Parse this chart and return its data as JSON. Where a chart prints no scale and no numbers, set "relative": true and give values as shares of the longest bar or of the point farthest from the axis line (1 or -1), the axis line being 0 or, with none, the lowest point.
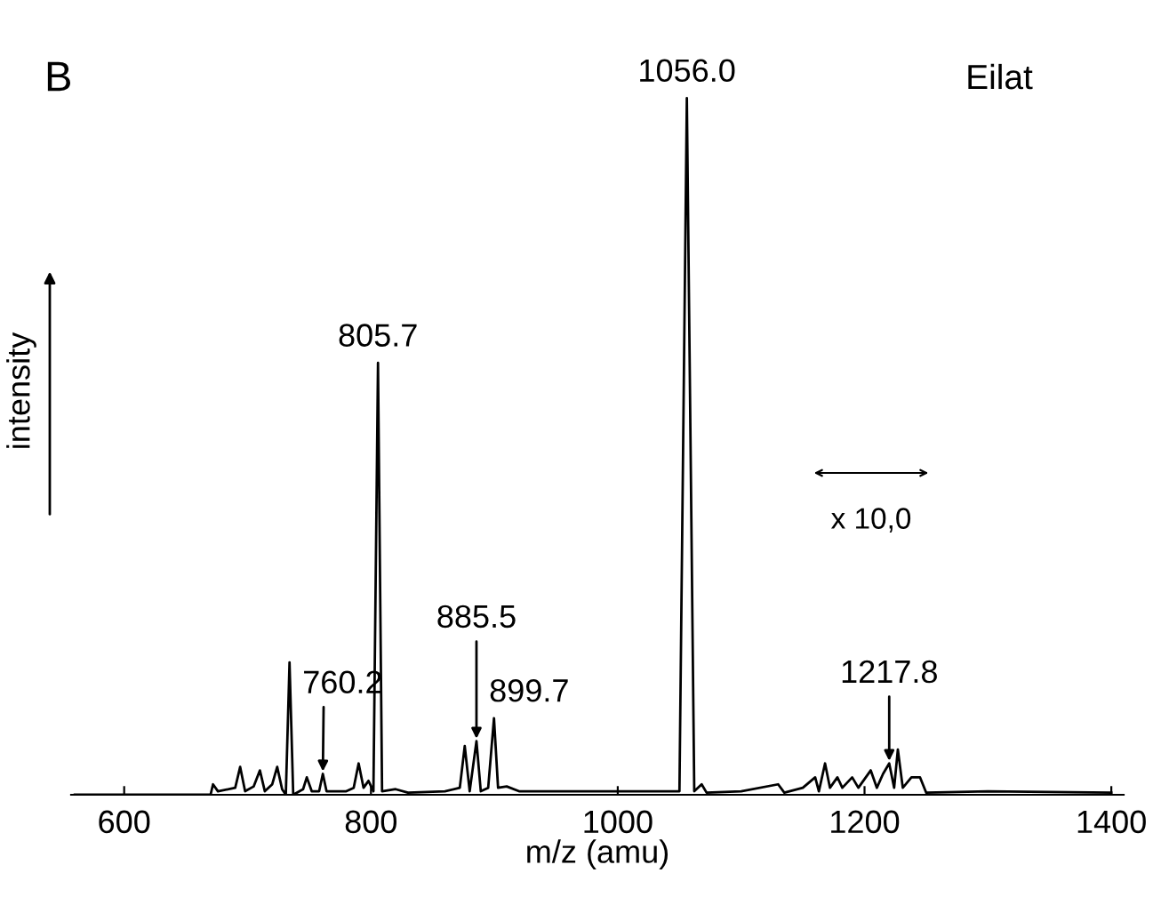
{
  "chart_data": {
    "type": "line",
    "xlabel": "m/z (amu)",
    "ylabel": "intensity",
    "relative": true,
    "xlim": [
      557,
      1410
    ],
    "xticks": [
      600,
      800,
      1000,
      1200,
      1400
    ],
    "grid": false,
    "legend": false,
    "marker": "none",
    "line_style": "solid",
    "series": [
      {
        "color": "#000000",
        "x": [
          560,
          670,
          672,
          676,
          690,
          694,
          698,
          705,
          710,
          714,
          720,
          724,
          728,
          731,
          734,
          737,
          745,
          748,
          752,
          758,
          761,
          764,
          780,
          786,
          790,
          794,
          798,
          802,
          805.7,
          809,
          820,
          830,
          860,
          872,
          876,
          880,
          885.5,
          889,
          895,
          899.7,
          903,
          910,
          920,
          1000,
          1050,
          1056,
          1062,
          1068,
          1072,
          1100,
          1130,
          1135,
          1150,
          1160,
          1163,
          1168,
          1172,
          1178,
          1182,
          1190,
          1195,
          1205,
          1210,
          1215,
          1220,
          1224,
          1227,
          1231,
          1238,
          1245,
          1250,
          1300,
          1400
        ],
        "values": [
          0,
          0,
          0.015,
          0.005,
          0.01,
          0.04,
          0.005,
          0.012,
          0.035,
          0.005,
          0.015,
          0.04,
          0.008,
          0,
          0.19,
          0,
          0.008,
          0.025,
          0.005,
          0.005,
          0.03,
          0.005,
          0.005,
          0.01,
          0.045,
          0.01,
          0.02,
          0.005,
          0.62,
          0.005,
          0.008,
          0.003,
          0.005,
          0.01,
          0.07,
          0.005,
          0.077,
          0.005,
          0.01,
          0.11,
          0.01,
          0.012,
          0.005,
          0.005,
          0.005,
          1.0,
          0.005,
          0.015,
          0.003,
          0.005,
          0.015,
          0.003,
          0.01,
          0.025,
          0.005,
          0.045,
          0.01,
          0.025,
          0.01,
          0.025,
          0.01,
          0.035,
          0.01,
          0.03,
          0.045,
          0.01,
          0.065,
          0.01,
          0.025,
          0.025,
          0.003,
          0.005,
          0.003
        ]
      }
    ],
    "annotations": [
      "B",
      "Eilat",
      {
        "text": "1056.0",
        "x": 1056,
        "y": 1.0
      },
      {
        "text": "805.7",
        "x": 805.7,
        "y": 0.62
      },
      {
        "text": "899.7",
        "x": 899.7,
        "y": 0.11
      },
      {
        "text": "885.5",
        "x": 885.5,
        "y": 0.077
      },
      {
        "text": "760.2",
        "x": 761,
        "y": 0.03
      },
      {
        "text": "1217.8",
        "x": 1220,
        "y": 0.045
      },
      "x 10,0"
    ]
  }
}
